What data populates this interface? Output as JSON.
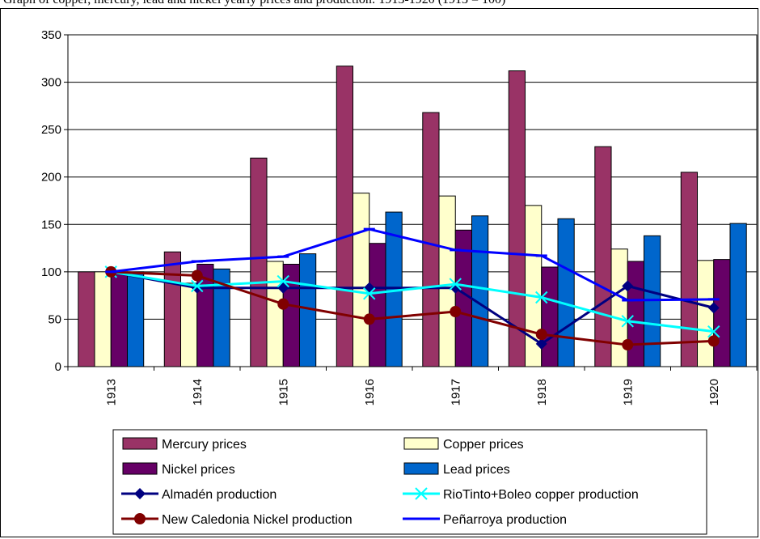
{
  "caption": "Graph of copper, mercury, lead and nickel yearly prices and production: 1913-1920 (1913 = 100)",
  "chart_data": {
    "type": "bar",
    "categories": [
      "1913",
      "1914",
      "1915",
      "1916",
      "1917",
      "1918",
      "1919",
      "1920"
    ],
    "ylim": [
      0,
      350
    ],
    "yticks": [
      "0",
      "50",
      "100",
      "150",
      "200",
      "250",
      "300",
      "350"
    ],
    "grid": true,
    "legend_position": "bottom",
    "series": [
      {
        "name": "Mercury prices",
        "kind": "bar",
        "color": "#993366",
        "values": [
          100,
          121,
          220,
          317,
          268,
          312,
          232,
          205
        ]
      },
      {
        "name": "Copper prices",
        "kind": "bar",
        "color": "#FFFFCC",
        "values": [
          100,
          88,
          111,
          183,
          180,
          170,
          124,
          112
        ]
      },
      {
        "name": "Nickel prices",
        "kind": "bar",
        "color": "#660066",
        "values": [
          100,
          108,
          108,
          130,
          144,
          105,
          111,
          113
        ]
      },
      {
        "name": "Lead prices",
        "kind": "bar",
        "color": "#0066CC",
        "values": [
          100,
          103,
          119,
          163,
          159,
          156,
          138,
          151
        ]
      },
      {
        "name": "Almadén production",
        "kind": "line",
        "marker": "diamond",
        "color": "#000080",
        "values": [
          100,
          83,
          83,
          83,
          83,
          24,
          85,
          62
        ]
      },
      {
        "name": "RioTinto+Boleo copper production",
        "kind": "line",
        "marker": "x",
        "color": "#00FFFF",
        "values": [
          100,
          85,
          90,
          77,
          87,
          73,
          48,
          37
        ]
      },
      {
        "name": "New Caledonia Nickel production",
        "kind": "line",
        "marker": "circle",
        "color": "#800000",
        "values": [
          100,
          96,
          66,
          50,
          58,
          34,
          23,
          27
        ]
      },
      {
        "name": "Peñarroya production",
        "kind": "line",
        "marker": "dash",
        "color": "#0000FF",
        "values": [
          100,
          111,
          116,
          145,
          123,
          117,
          70,
          71
        ]
      }
    ]
  }
}
